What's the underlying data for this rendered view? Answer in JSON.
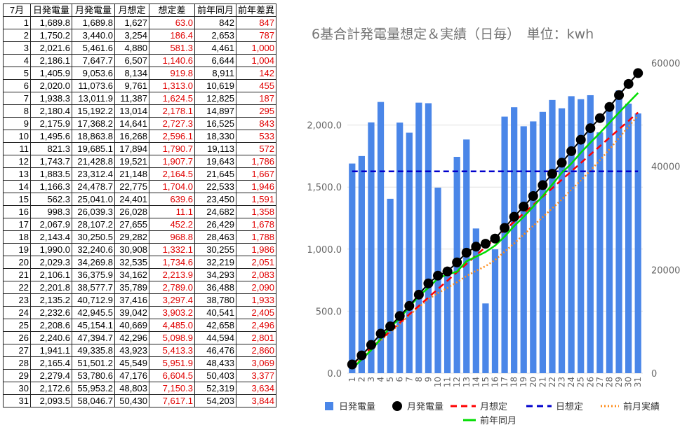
{
  "table": {
    "headers": [
      "7月",
      "日発電量",
      "月発電量",
      "月想定",
      "想定差",
      "前年同月",
      "前年差異"
    ],
    "rows": [
      [
        "1",
        "1,689.8",
        "1,689.8",
        "1,627",
        "63.0",
        "842",
        "847"
      ],
      [
        "2",
        "1,750.2",
        "3,440.0",
        "3,254",
        "186.4",
        "2,653",
        "787"
      ],
      [
        "3",
        "2,021.6",
        "5,461.6",
        "4,880",
        "581.3",
        "4,461",
        "1,000"
      ],
      [
        "4",
        "2,186.1",
        "7,647.7",
        "6,507",
        "1,140.6",
        "6,644",
        "1,004"
      ],
      [
        "5",
        "1,405.9",
        "9,053.6",
        "8,134",
        "919.8",
        "8,911",
        "142"
      ],
      [
        "6",
        "2,020.0",
        "11,073.6",
        "9,761",
        "1,313.0",
        "10,619",
        "455"
      ],
      [
        "7",
        "1,938.3",
        "13,011.9",
        "11,387",
        "1,624.5",
        "12,825",
        "187"
      ],
      [
        "8",
        "2,180.4",
        "15,192.2",
        "13,014",
        "2,178.1",
        "14,897",
        "295"
      ],
      [
        "9",
        "2,175.9",
        "17,368.2",
        "14,641",
        "2,727.3",
        "16,525",
        "843"
      ],
      [
        "10",
        "1,495.6",
        "18,863.8",
        "16,268",
        "2,596.1",
        "18,330",
        "533"
      ],
      [
        "11",
        "821.3",
        "19,685.1",
        "17,894",
        "1,790.7",
        "19,113",
        "572"
      ],
      [
        "12",
        "1,743.7",
        "21,428.8",
        "19,521",
        "1,907.7",
        "19,643",
        "1,786"
      ],
      [
        "13",
        "1,883.5",
        "23,312.4",
        "21,148",
        "2,164.5",
        "21,645",
        "1,667"
      ],
      [
        "14",
        "1,166.3",
        "24,478.7",
        "22,775",
        "1,704.0",
        "22,533",
        "1,946"
      ],
      [
        "15",
        "562.3",
        "25,041.0",
        "24,401",
        "639.6",
        "23,450",
        "1,591"
      ],
      [
        "16",
        "998.3",
        "26,039.3",
        "26,028",
        "11.1",
        "24,682",
        "1,358"
      ],
      [
        "17",
        "2,067.9",
        "28,107.2",
        "27,655",
        "452.2",
        "26,429",
        "1,678"
      ],
      [
        "18",
        "2,143.4",
        "30,250.5",
        "29,282",
        "968.8",
        "28,463",
        "1,788"
      ],
      [
        "19",
        "1,990.0",
        "32,240.6",
        "30,908",
        "1,332.1",
        "30,255",
        "1,986"
      ],
      [
        "20",
        "2,029.3",
        "34,269.8",
        "32,535",
        "1,734.6",
        "32,219",
        "2,051"
      ],
      [
        "21",
        "2,106.1",
        "36,375.9",
        "34,162",
        "2,213.9",
        "34,293",
        "2,083"
      ],
      [
        "22",
        "2,201.8",
        "38,577.7",
        "35,789",
        "2,789.0",
        "36,488",
        "2,090"
      ],
      [
        "23",
        "2,135.2",
        "40,712.9",
        "37,416",
        "3,297.4",
        "38,780",
        "1,933"
      ],
      [
        "24",
        "2,232.6",
        "42,945.5",
        "39,042",
        "3,903.2",
        "40,541",
        "2,405"
      ],
      [
        "25",
        "2,208.6",
        "45,154.1",
        "40,669",
        "4,485.0",
        "42,658",
        "2,496"
      ],
      [
        "26",
        "2,240.6",
        "47,394.7",
        "42,296",
        "5,098.9",
        "44,594",
        "2,801"
      ],
      [
        "27",
        "1,941.1",
        "49,335.8",
        "43,923",
        "5,413.3",
        "46,476",
        "2,860"
      ],
      [
        "28",
        "2,165.4",
        "51,501.2",
        "45,549",
        "5,951.9",
        "48,433",
        "3,069"
      ],
      [
        "29",
        "2,279.4",
        "53,780.6",
        "47,176",
        "6,604.5",
        "50,403",
        "3,377"
      ],
      [
        "30",
        "2,172.6",
        "55,953.2",
        "48,803",
        "7,150.3",
        "52,319",
        "3,634"
      ],
      [
        "31",
        "2,093.5",
        "58,046.7",
        "50,430",
        "7,617.1",
        "54,203",
        "3,844"
      ]
    ]
  },
  "chart_data": {
    "type": "bar",
    "title": "6基合計発電量想定＆実績（日毎）　単位：kwh",
    "categories": [
      "1",
      "2",
      "3",
      "4",
      "5",
      "6",
      "7",
      "8",
      "9",
      "10",
      "11",
      "12",
      "13",
      "14",
      "15",
      "16",
      "17",
      "18",
      "19",
      "20",
      "21",
      "22",
      "23",
      "24",
      "25",
      "26",
      "27",
      "28",
      "29",
      "30",
      "31"
    ],
    "y_left": {
      "ticks": [
        "0.0",
        "500.0",
        "1,000.0",
        "1,500.0",
        "2,000.0"
      ],
      "range": [
        0,
        2500
      ]
    },
    "y_right": {
      "ticks": [
        "0",
        "20000",
        "40000",
        "60000"
      ],
      "range": [
        0,
        60000
      ]
    },
    "series": [
      {
        "name": "日発電量",
        "type": "bar",
        "axis": "left",
        "color": "#4a86e8",
        "values": [
          1689.8,
          1750.2,
          2021.6,
          2186.1,
          1405.9,
          2020.0,
          1938.3,
          2180.4,
          2175.9,
          1495.6,
          821.3,
          1743.7,
          1883.5,
          1166.3,
          562.3,
          998.3,
          2067.9,
          2143.4,
          1990.0,
          2029.3,
          2106.1,
          2201.8,
          2135.2,
          2232.6,
          2208.6,
          2240.6,
          1941.1,
          2165.4,
          2279.4,
          2172.6,
          2093.5
        ]
      },
      {
        "name": "月発電量",
        "type": "line-marker",
        "axis": "right",
        "color": "#000000",
        "values": [
          1689.8,
          3440.0,
          5461.6,
          7647.7,
          9053.6,
          11073.6,
          13011.9,
          15192.2,
          17368.2,
          18863.8,
          19685.1,
          21428.8,
          23312.4,
          24478.7,
          25041.0,
          26039.3,
          28107.2,
          30250.5,
          32240.6,
          34269.8,
          36375.9,
          38577.7,
          40712.9,
          42945.5,
          45154.1,
          47394.7,
          49335.8,
          51501.2,
          53780.6,
          55953.2,
          58046.7
        ]
      },
      {
        "name": "月想定",
        "type": "dashed",
        "axis": "right",
        "color": "#ff0000",
        "values": [
          1627,
          3254,
          4880,
          6507,
          8134,
          9761,
          11387,
          13014,
          14641,
          16268,
          17894,
          19521,
          21148,
          22775,
          24401,
          26028,
          27655,
          29282,
          30908,
          32535,
          34162,
          35789,
          37416,
          39042,
          40669,
          42296,
          43923,
          45549,
          47176,
          48803,
          50430
        ]
      },
      {
        "name": "日想定",
        "type": "dashed",
        "axis": "left",
        "color": "#0000cc",
        "values": [
          1627,
          1627,
          1627,
          1627,
          1627,
          1627,
          1627,
          1627,
          1627,
          1627,
          1627,
          1627,
          1627,
          1627,
          1627,
          1627,
          1627,
          1627,
          1627,
          1627,
          1627,
          1627,
          1627,
          1627,
          1627,
          1627,
          1627,
          1627,
          1627,
          1627,
          1627
        ]
      },
      {
        "name": "前月実績",
        "type": "dotted",
        "axis": "right",
        "color": "#ff8c1a",
        "values": [
          1500,
          3000,
          4700,
          6300,
          7900,
          9500,
          11200,
          12800,
          14300,
          15500,
          16500,
          17600,
          18800,
          19800,
          20700,
          21900,
          23500,
          25100,
          26800,
          28500,
          30200,
          31900,
          33600,
          35500,
          37300,
          39200,
          41200,
          43300,
          45500,
          47700,
          49800
        ]
      },
      {
        "name": "前年同月",
        "type": "line",
        "axis": "right",
        "color": "#00dd00",
        "values": [
          842,
          2653,
          4461,
          6644,
          8911,
          10619,
          12825,
          14897,
          16525,
          18330,
          19113,
          19643,
          21645,
          22533,
          23450,
          24682,
          26429,
          28463,
          30255,
          32219,
          34293,
          36488,
          38780,
          40541,
          42658,
          44594,
          46476,
          48433,
          50403,
          52319,
          54203
        ]
      }
    ],
    "legend": [
      "日発電量",
      "月発電量",
      "月想定",
      "日想定",
      "前月実績",
      "前年同月"
    ],
    "legend_position": "bottom",
    "grid": true
  }
}
